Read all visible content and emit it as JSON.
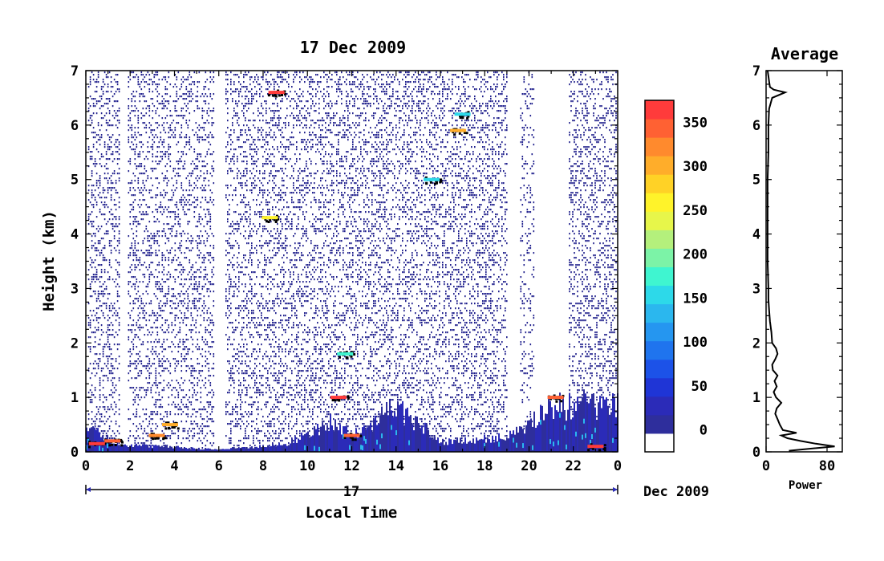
{
  "chart_data": [
    {
      "type": "heatmap",
      "title": "17 Dec 2009",
      "xlabel": "Local Time",
      "ylabel": "Height (km)",
      "x_ticks": [
        "0",
        "2",
        "4",
        "6",
        "8",
        "10",
        "12",
        "14",
        "16",
        "18",
        "20",
        "22",
        "0"
      ],
      "x_range": [
        0,
        24
      ],
      "y_ticks": [
        "0",
        "1",
        "2",
        "3",
        "4",
        "5",
        "6",
        "7"
      ],
      "y_range": [
        0,
        7
      ],
      "date_axis": {
        "day": "17",
        "month_year": "Dec 2009"
      },
      "colorbar": {
        "ticks": [
          "0",
          "50",
          "100",
          "150",
          "200",
          "250",
          "300",
          "350"
        ],
        "range": [
          -25,
          375
        ],
        "colors": [
          "#ffffff",
          "#2e2e9c",
          "#2b2bb8",
          "#1f35d6",
          "#1c52e8",
          "#1f74ee",
          "#2596f0",
          "#2bb7ee",
          "#2dd9e9",
          "#3ff5d0",
          "#7cf3a7",
          "#b4f07c",
          "#e7f64a",
          "#fff32a",
          "#ffd226",
          "#ffad2a",
          "#ff8a2d",
          "#ff6133",
          "#ff3b3b"
        ]
      },
      "noise_regions": [
        {
          "from": 0.1,
          "to": 1.5,
          "density": 0.6
        },
        {
          "from": 1.9,
          "to": 5.8,
          "density": 0.55
        },
        {
          "from": 6.3,
          "to": 19.0,
          "density": 0.6
        },
        {
          "from": 19.6,
          "to": 20.2,
          "density": 0.35
        },
        {
          "from": 21.8,
          "to": 23.9,
          "density": 0.6
        }
      ],
      "boundary_layer": [
        {
          "t": 0.0,
          "h": 0.5
        },
        {
          "t": 1.5,
          "h": 0.15
        },
        {
          "t": 6.0,
          "h": 0.05
        },
        {
          "t": 9.0,
          "h": 0.15
        },
        {
          "t": 11.0,
          "h": 0.6
        },
        {
          "t": 12.0,
          "h": 0.35
        },
        {
          "t": 14.0,
          "h": 0.9
        },
        {
          "t": 16.0,
          "h": 0.2
        },
        {
          "t": 19.0,
          "h": 0.3
        },
        {
          "t": 21.0,
          "h": 0.9
        },
        {
          "t": 24.0,
          "h": 1.0
        }
      ],
      "strong_echoes": [
        {
          "t": 0.5,
          "h": 0.15,
          "v": 360
        },
        {
          "t": 1.2,
          "h": 0.2,
          "v": 340
        },
        {
          "t": 3.2,
          "h": 0.3,
          "v": 320
        },
        {
          "t": 3.8,
          "h": 0.5,
          "v": 300
        },
        {
          "t": 8.6,
          "h": 6.6,
          "v": 370
        },
        {
          "t": 8.3,
          "h": 4.3,
          "v": 250
        },
        {
          "t": 11.4,
          "h": 1.0,
          "v": 360
        },
        {
          "t": 12.0,
          "h": 0.3,
          "v": 340
        },
        {
          "t": 16.8,
          "h": 5.9,
          "v": 300
        },
        {
          "t": 21.2,
          "h": 1.0,
          "v": 350
        },
        {
          "t": 23.0,
          "h": 0.1,
          "v": 360
        },
        {
          "t": 11.7,
          "h": 1.8,
          "v": 180
        },
        {
          "t": 15.6,
          "h": 5.0,
          "v": 150
        },
        {
          "t": 17.0,
          "h": 6.2,
          "v": 160
        }
      ]
    },
    {
      "type": "line",
      "title": "Average",
      "xlabel": "Power",
      "x_ticks": [
        "0",
        "80"
      ],
      "x_range": [
        0,
        100
      ],
      "y_range": [
        0,
        7
      ],
      "series": [
        {
          "h": [
            0.02,
            0.1,
            0.15,
            0.2,
            0.25,
            0.3,
            0.35,
            0.4,
            0.5,
            0.6,
            0.7,
            0.8,
            0.9,
            1.0,
            1.1,
            1.2,
            1.3,
            1.4,
            1.5,
            1.6,
            1.7,
            1.8,
            1.9,
            2.0,
            2.2,
            2.4,
            2.6,
            2.8,
            3.0,
            3.5,
            4.0,
            4.5,
            5.0,
            5.5,
            6.0,
            6.3,
            6.5,
            6.6,
            6.65,
            6.7,
            6.8,
            6.9,
            7.0
          ],
          "power": [
            30,
            90,
            65,
            45,
            28,
            20,
            40,
            22,
            18,
            15,
            12,
            14,
            20,
            13,
            10,
            14,
            11,
            15,
            9,
            8,
            12,
            15,
            13,
            8,
            7,
            5,
            4,
            3,
            3,
            2,
            2,
            2,
            2,
            3,
            3,
            4,
            8,
            25,
            10,
            5,
            4,
            3,
            2
          ]
        }
      ]
    }
  ]
}
